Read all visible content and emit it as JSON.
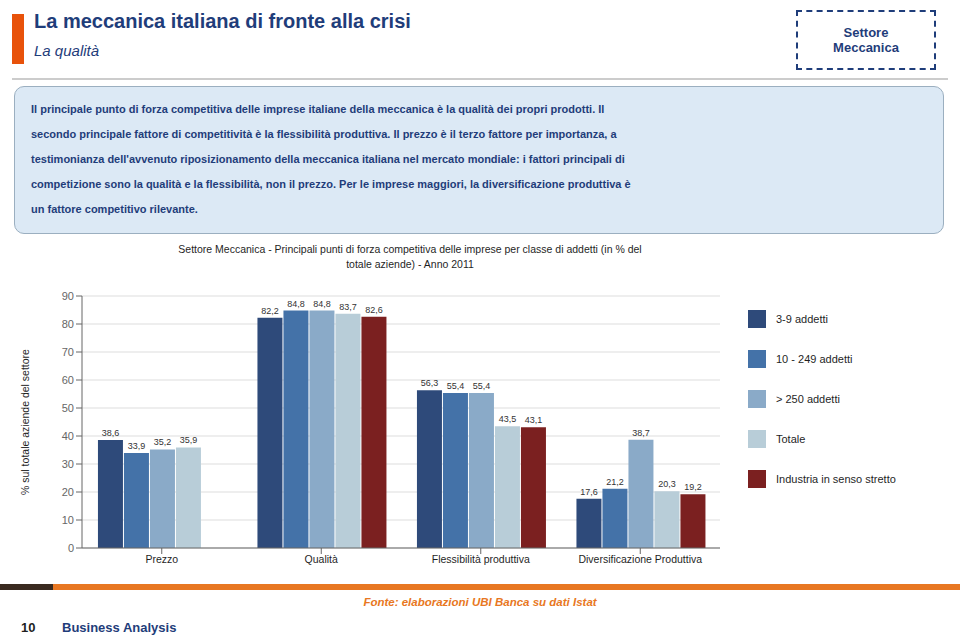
{
  "chart_data": {
    "type": "bar",
    "title": "Settore Meccanica - Principali punti di forza competitiva delle imprese per classe di addetti (in % del\ntotale aziende)  - Anno 2011",
    "categories": [
      "Prezzo",
      "Qualità",
      "Flessibilità produttiva",
      "Diversificazione Produttiva"
    ],
    "series": [
      {
        "name": "3-9 addetti",
        "color": "#2E4A7A",
        "values": [
          38.6,
          82.2,
          56.3,
          17.6
        ],
        "value_labels": [
          "38,6",
          "82,2",
          "56,3",
          "17,6"
        ]
      },
      {
        "name": "10 - 249 addetti",
        "color": "#4472A8",
        "values": [
          33.9,
          84.8,
          55.4,
          21.2
        ],
        "value_labels": [
          "33,9",
          "84,8",
          "55,4",
          "21,2"
        ]
      },
      {
        "name": "> 250 addetti",
        "color": "#8AAAC8",
        "values": [
          35.2,
          84.8,
          55.4,
          38.7
        ],
        "value_labels": [
          "35,2",
          "84,8",
          "55,4",
          "38,7"
        ]
      },
      {
        "name": "Totale",
        "color": "#B8CDD8",
        "values": [
          35.9,
          83.7,
          43.5,
          20.3
        ],
        "value_labels": [
          "35,9",
          "83,7",
          "43,5",
          "20,3"
        ]
      },
      {
        "name": "Industria in senso stretto",
        "color": "#7B2020",
        "values": [
          null,
          82.6,
          43.1,
          19.2
        ],
        "value_labels": [
          null,
          "82,6",
          "43,1",
          "19,2"
        ]
      }
    ],
    "ylabel": "% sul totale aziende del settore",
    "ylim": [
      0,
      90
    ],
    "yticks": [
      0,
      10,
      20,
      30,
      40,
      50,
      60,
      70,
      80,
      90
    ],
    "grid": true,
    "legend": "right",
    "data_labels": true,
    "annotations": {
      "header_title": "La meccanica italiana di fronte alla crisi",
      "header_subtitle": "La qualità",
      "badge": "Settore\nMeccanica",
      "text": [
        "Il principale punto di forza competitiva delle imprese italiane della meccanica è la qualità dei propri prodotti. Il",
        "secondo principale fattore di competitività è la flessibilità produttiva. Il prezzo è il terzo fattore per importanza, a",
        "testimonianza dell'avvenuto riposizionamento della meccanica italiana nel mercato mondiale: i fattori principali di",
        "competizione sono la qualità e la flessibilità, non il prezzo. Per le imprese maggiori, la diversificazione produttiva è",
        "un fattore competitivo rilevante."
      ],
      "source": "Fonte: elaborazioni UBI Banca su dati Istat",
      "page": "10",
      "footer": "Business Analysis"
    }
  }
}
